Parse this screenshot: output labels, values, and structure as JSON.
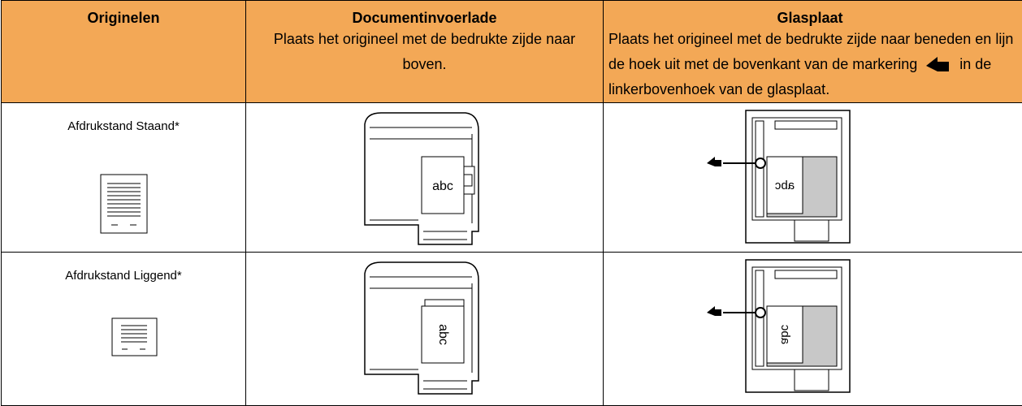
{
  "table": {
    "header": [
      {
        "title": "Originelen"
      },
      {
        "title": "Documentinvoerlade",
        "text": "Plaats het origineel met de bedrukte zijde naar boven."
      },
      {
        "title": "Glasplaat",
        "text_before": "Plaats het origineel met de bedrukte zijde naar beneden en lijn de hoek uit met de bovenkant van de markering",
        "text_after": "in de linkerbovenhoek van de glasplaat."
      }
    ],
    "rows": [
      {
        "label": "Afdrukstand Staand*",
        "feeder_text": "abc",
        "glass_text": "abc"
      },
      {
        "label": "Afdrukstand Liggend*",
        "feeder_text": "abc",
        "glass_text": "abc"
      }
    ]
  }
}
